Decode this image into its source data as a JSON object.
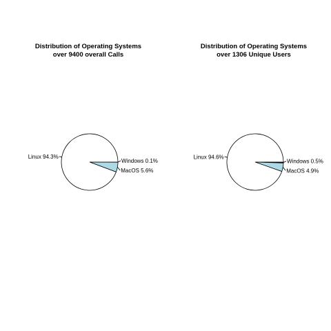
{
  "chart_data": [
    {
      "type": "pie",
      "title": "Distribution of Operating Systems",
      "subtitle": "over 9400 overall Calls",
      "slices": [
        {
          "name": "Windows",
          "value": 0.1,
          "label": "Windows 0.1%",
          "color": "#000000"
        },
        {
          "name": "MacOS",
          "value": 5.6,
          "label": "MacOS 5.6%",
          "color": "#add8e6"
        },
        {
          "name": "Linux",
          "value": 94.3,
          "label": "Linux 94.3%",
          "color": "#ffffff"
        }
      ]
    },
    {
      "type": "pie",
      "title": "Distribution of Operating Systems",
      "subtitle": "over 1306 Unique Users",
      "slices": [
        {
          "name": "Windows",
          "value": 0.5,
          "label": "Windows 0.5%",
          "color": "#000000"
        },
        {
          "name": "MacOS",
          "value": 4.9,
          "label": "MacOS 4.9%",
          "color": "#add8e6"
        },
        {
          "name": "Linux",
          "value": 94.6,
          "label": "Linux 94.6%",
          "color": "#ffffff"
        }
      ]
    }
  ]
}
